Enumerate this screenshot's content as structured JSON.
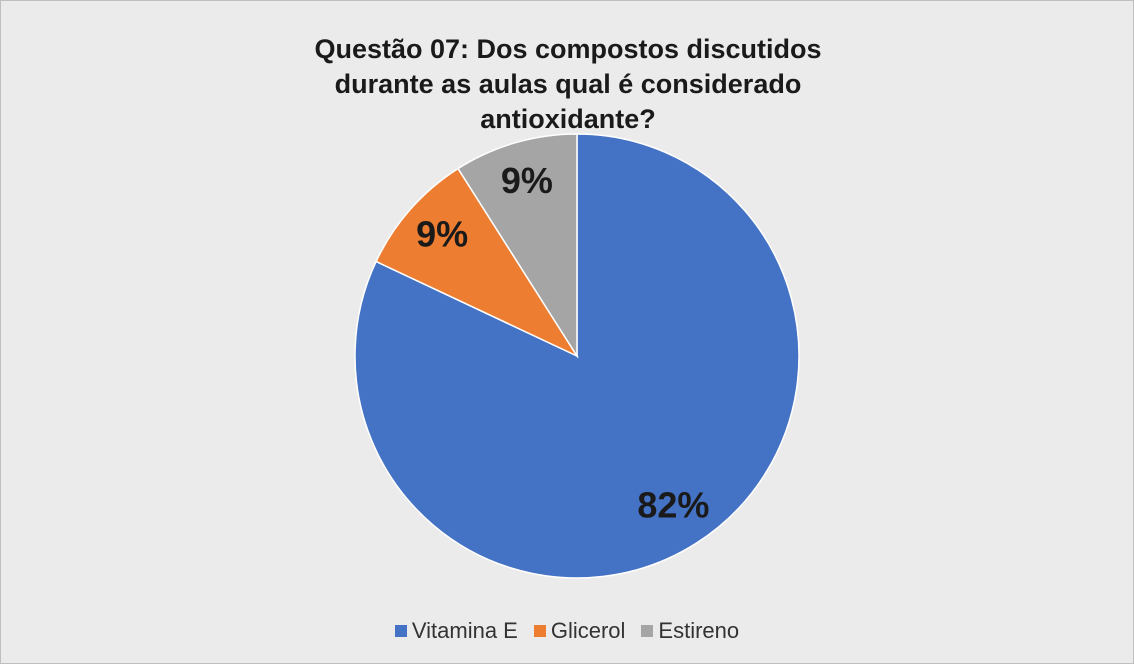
{
  "chart_data": {
    "type": "pie",
    "title": "Questão 07: Dos compostos discutidos durante as aulas qual é considerado antioxidante?",
    "categories": [
      "Vitamina E",
      "Glicerol",
      "Estireno"
    ],
    "values": [
      82,
      9,
      9
    ],
    "value_labels": [
      "82%",
      "9%",
      "9%"
    ],
    "colors": [
      "#4472c4",
      "#ed7d31",
      "#a5a5a5"
    ],
    "legend": "bottom"
  }
}
